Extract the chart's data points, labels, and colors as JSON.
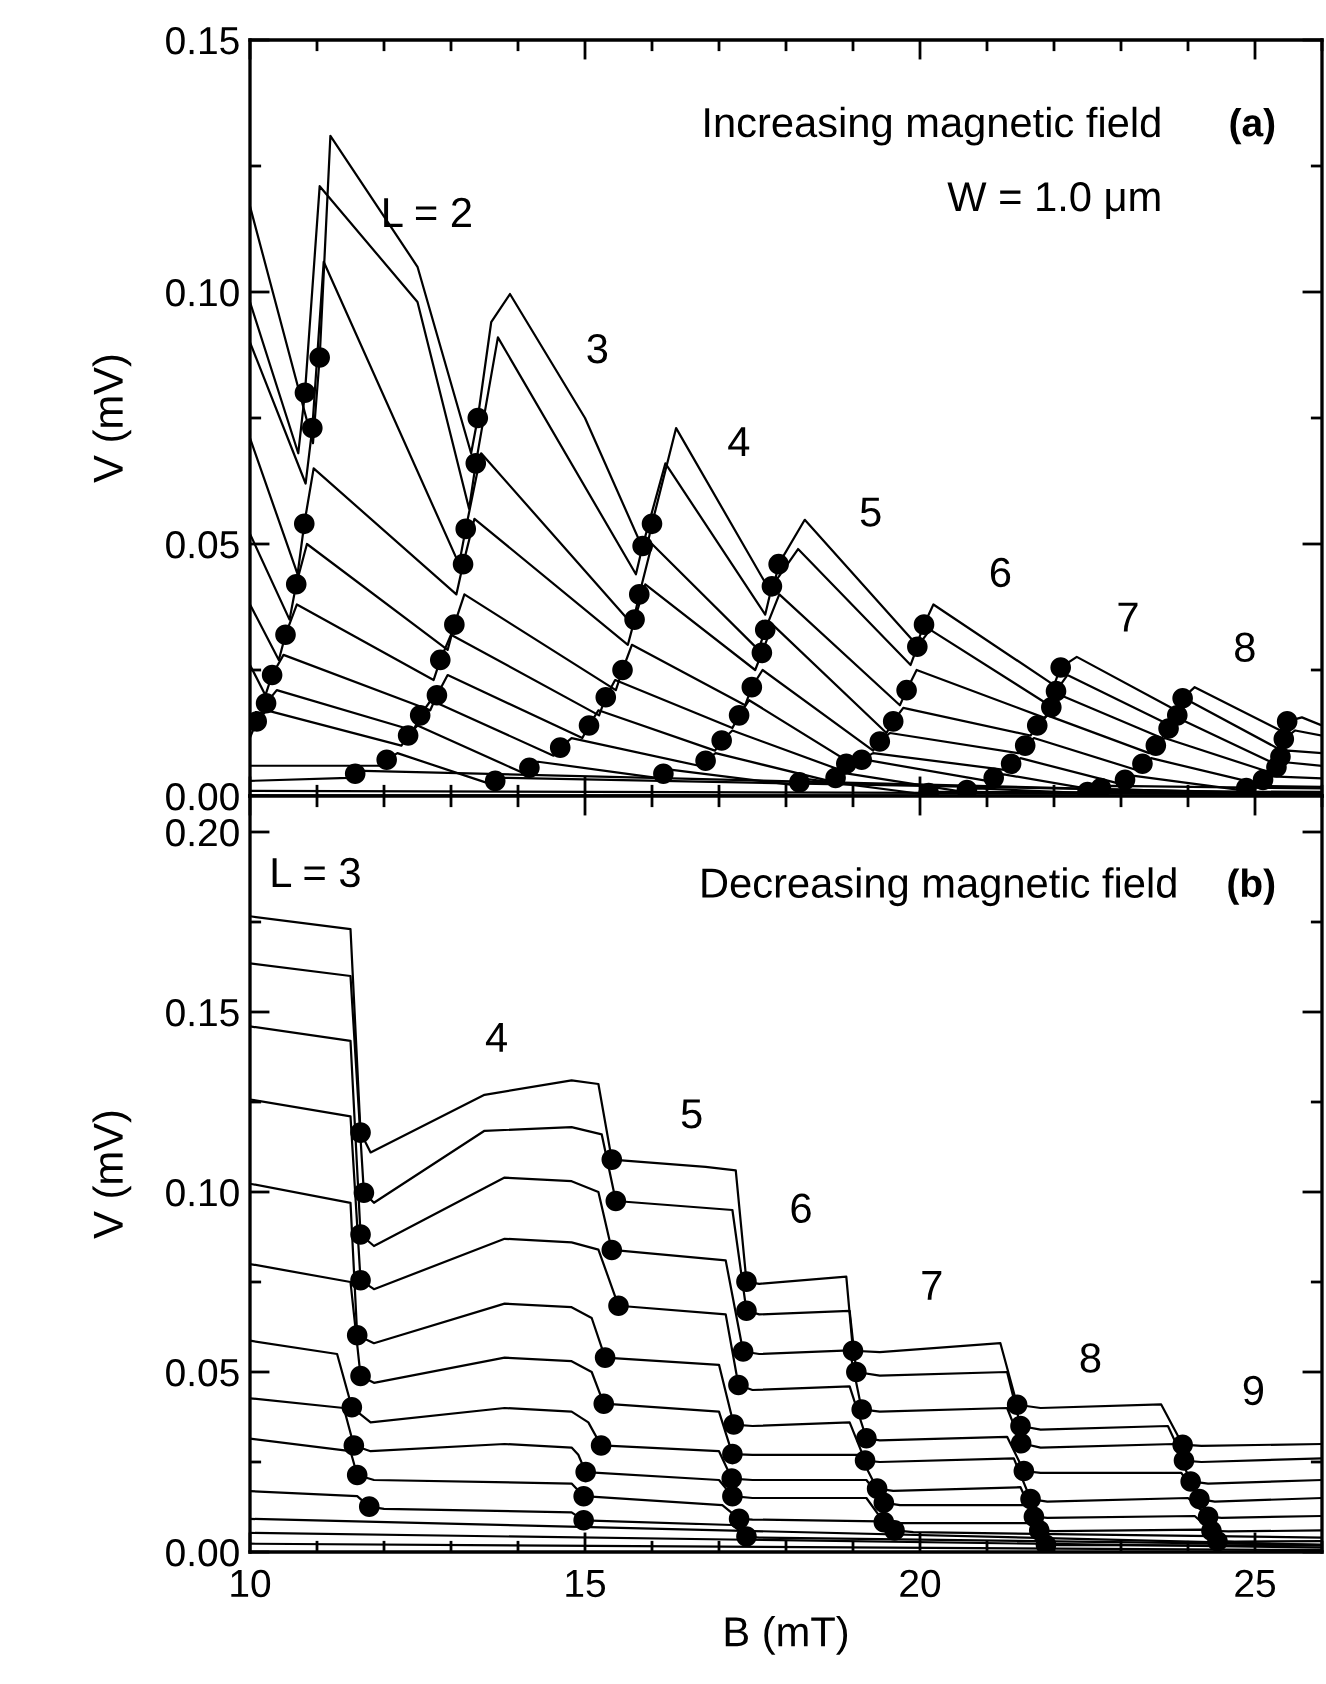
{
  "chart_data": [
    {
      "type": "line",
      "ylabel": "V (mV)",
      "tick_labels": "y",
      "xlim": [
        10,
        26
      ],
      "ylim": [
        0,
        0.15
      ],
      "xticks": [
        10,
        {
          "value": 11,
          "label": null
        },
        {
          "value": 12,
          "label": null
        },
        {
          "value": 13,
          "label": null
        },
        {
          "value": 14,
          "label": null
        },
        15,
        {
          "value": 16,
          "label": null
        },
        {
          "value": 17,
          "label": null
        },
        {
          "value": 18,
          "label": null
        },
        {
          "value": 19,
          "label": null
        },
        20,
        {
          "value": 21,
          "label": null
        },
        {
          "value": 22,
          "label": null
        },
        {
          "value": 23,
          "label": null
        },
        {
          "value": 24,
          "label": null
        },
        25,
        {
          "value": 26,
          "label": null
        }
      ],
      "yticks": [
        {
          "value": 0,
          "label": "0.00"
        },
        {
          "value": 0.025,
          "label": null
        },
        {
          "value": 0.05,
          "label": "0.05"
        },
        {
          "value": 0.075,
          "label": null
        },
        {
          "value": 0.1,
          "label": "0.10"
        },
        {
          "value": 0.125,
          "label": null
        },
        {
          "value": 0.15,
          "label": "0.15"
        }
      ],
      "annotations": [
        "Increasing magnetic field",
        "W = 1.0 μm",
        "(a)",
        "L = 2",
        "3",
        "4",
        "5",
        "6",
        "7",
        "8"
      ],
      "series": [
        {
          "type": "line",
          "color": "#000000",
          "x": [
            10,
            10.94,
            11.04,
            11.2,
            12.5,
            13.3,
            13.4,
            13.6,
            13.88,
            15.0,
            15.9,
            16.0,
            16.36,
            17.79,
            17.89,
            18.28,
            19.95,
            20.06,
            20.2,
            22.0,
            22.1,
            22.34,
            23.82,
            23.92,
            24.1,
            25.38,
            25.48,
            25.7,
            26
          ],
          "values": [
            0.117,
            0.07,
            0.087,
            0.131,
            0.105,
            0.068,
            0.075,
            0.094,
            0.0996,
            0.075,
            0.048,
            0.054,
            0.073,
            0.04,
            0.046,
            0.0548,
            0.03,
            0.034,
            0.038,
            0.022,
            0.0255,
            0.0276,
            0.017,
            0.0194,
            0.0216,
            0.013,
            0.0148,
            0.0156,
            0.014
          ]
        },
        {
          "type": "line",
          "color": "#000000",
          "x": [
            10,
            10.72,
            10.82,
            11.04,
            12.5,
            13.27,
            13.37,
            13.7,
            15.76,
            15.86,
            16.2,
            17.69,
            17.79,
            18.18,
            19.86,
            19.96,
            20.15,
            21.93,
            22.03,
            22.2,
            23.74,
            23.84,
            24.0,
            25.33,
            25.43,
            25.6,
            26
          ],
          "values": [
            0.098,
            0.068,
            0.08,
            0.121,
            0.098,
            0.057,
            0.066,
            0.091,
            0.044,
            0.0496,
            0.066,
            0.036,
            0.0416,
            0.049,
            0.026,
            0.0296,
            0.033,
            0.018,
            0.0208,
            0.024,
            0.014,
            0.016,
            0.019,
            0.0095,
            0.0113,
            0.013,
            0.012
          ]
        },
        {
          "type": "line",
          "color": "#000000",
          "x": [
            10,
            10.83,
            10.93,
            11.1,
            13.12,
            13.22,
            13.45,
            15.71,
            15.81,
            16.0,
            17.59,
            17.69,
            17.9,
            19.7,
            19.8,
            19.95,
            21.86,
            21.96,
            22.1,
            23.61,
            23.71,
            23.85,
            25.28,
            25.38,
            25.5,
            26
          ],
          "values": [
            0.09,
            0.062,
            0.073,
            0.106,
            0.046,
            0.053,
            0.068,
            0.034,
            0.04,
            0.05,
            0.029,
            0.033,
            0.04,
            0.018,
            0.021,
            0.025,
            0.0155,
            0.0176,
            0.02,
            0.0115,
            0.0134,
            0.0155,
            0.0065,
            0.0078,
            0.009,
            0.0085
          ]
        },
        {
          "type": "line",
          "color": "#000000",
          "x": [
            10,
            10.71,
            10.81,
            10.95,
            13.08,
            13.18,
            13.35,
            15.64,
            15.74,
            15.9,
            17.54,
            17.64,
            17.8,
            19.5,
            19.6,
            19.75,
            21.65,
            21.75,
            21.9,
            23.42,
            23.52,
            23.65,
            25.22,
            25.32,
            25.45,
            26
          ],
          "values": [
            0.071,
            0.044,
            0.054,
            0.065,
            0.04,
            0.046,
            0.055,
            0.03,
            0.035,
            0.042,
            0.025,
            0.0284,
            0.034,
            0.0125,
            0.0148,
            0.0175,
            0.012,
            0.014,
            0.016,
            0.0085,
            0.01,
            0.0115,
            0.0047,
            0.0057,
            0.0067,
            0.006
          ]
        },
        {
          "type": "line",
          "color": "#000000",
          "x": [
            10,
            10.59,
            10.69,
            10.85,
            12.95,
            13.05,
            13.2,
            15.46,
            15.56,
            15.7,
            17.39,
            17.49,
            17.65,
            19.3,
            19.4,
            19.55,
            21.47,
            21.57,
            21.7,
            23.22,
            23.32,
            23.45,
            25.02,
            25.12,
            25.25,
            26
          ],
          "values": [
            0.052,
            0.035,
            0.042,
            0.05,
            0.029,
            0.034,
            0.04,
            0.021,
            0.025,
            0.03,
            0.018,
            0.0216,
            0.025,
            0.009,
            0.0108,
            0.0125,
            0.0085,
            0.01,
            0.0115,
            0.0052,
            0.0064,
            0.0075,
            0.0025,
            0.0032,
            0.0039,
            0.0035
          ]
        },
        {
          "type": "line",
          "color": "#000000",
          "x": [
            10,
            10.43,
            10.53,
            10.7,
            12.74,
            12.84,
            13.0,
            15.21,
            15.31,
            15.45,
            17.2,
            17.3,
            17.45,
            19.03,
            19.13,
            19.3,
            21.26,
            21.36,
            21.5,
            22.96,
            23.06,
            23.2,
            24.77,
            24.87,
            25.0,
            26
          ],
          "values": [
            0.038,
            0.027,
            0.032,
            0.038,
            0.023,
            0.027,
            0.032,
            0.016,
            0.0196,
            0.023,
            0.0135,
            0.016,
            0.019,
            0.006,
            0.0072,
            0.0085,
            0.0052,
            0.0064,
            0.0075,
            0.0025,
            0.0032,
            0.004,
            0.0012,
            0.0016,
            0.002,
            0.0018
          ]
        },
        {
          "type": "line",
          "color": "#000000",
          "x": [
            10,
            10.23,
            10.33,
            10.5,
            12.69,
            12.79,
            12.95,
            14.96,
            15.06,
            15.2,
            16.94,
            17.04,
            17.2,
            18.8,
            18.9,
            19.05,
            21.0,
            21.1,
            21.25,
            22.6,
            22.7,
            22.85,
            26
          ],
          "values": [
            0.026,
            0.02,
            0.024,
            0.028,
            0.017,
            0.02,
            0.024,
            0.0115,
            0.014,
            0.017,
            0.009,
            0.011,
            0.013,
            0.0052,
            0.0064,
            0.0075,
            0.003,
            0.0036,
            0.0043,
            0.0012,
            0.0016,
            0.002,
            0.0015
          ]
        },
        {
          "type": "line",
          "color": "#000000",
          "x": [
            10,
            10.14,
            10.24,
            10.4,
            12.44,
            12.54,
            12.7,
            14.53,
            14.63,
            14.8,
            16.7,
            16.8,
            16.95,
            18.64,
            18.74,
            18.9,
            20.6,
            20.7,
            20.85,
            22.4,
            22.5,
            22.65,
            26
          ],
          "values": [
            0.0156,
            0.0155,
            0.0184,
            0.021,
            0.013,
            0.016,
            0.019,
            0.008,
            0.0096,
            0.0115,
            0.006,
            0.007,
            0.0085,
            0.003,
            0.0036,
            0.0045,
            0.0009,
            0.0012,
            0.0015,
            0.0006,
            0.0008,
            0.001,
            0.0008
          ]
        },
        {
          "type": "line",
          "color": "#000000",
          "x": [
            10,
            10.1,
            10.25,
            12.26,
            12.36,
            12.5,
            14.07,
            14.17,
            14.3,
            16.07,
            16.17,
            16.3,
            18.1,
            18.2,
            18.35,
            20.03,
            20.13,
            20.3,
            26
          ],
          "values": [
            0.0116,
            0.0148,
            0.017,
            0.01,
            0.012,
            0.014,
            0.0046,
            0.0056,
            0.0068,
            0.0036,
            0.0044,
            0.0052,
            0.0022,
            0.0027,
            0.0033,
            0.0004,
            0.0006,
            0.0008,
            0.0006
          ]
        },
        {
          "type": "line",
          "color": "#000000",
          "x": [
            10,
            11.94,
            12.04,
            12.2,
            13.56,
            13.66,
            13.8,
            26
          ],
          "values": [
            0.006,
            0.006,
            0.0072,
            0.0085,
            0.0025,
            0.003,
            0.0036,
            0.0005
          ]
        },
        {
          "type": "line",
          "color": "#000000",
          "x": [
            10,
            11.47,
            11.57,
            11.7,
            26
          ],
          "values": [
            0.003,
            0.0036,
            0.0044,
            0.005,
            0.0003
          ]
        },
        {
          "type": "line",
          "color": "#000000",
          "x": [
            10,
            26
          ],
          "values": [
            0.001,
            0.0004
          ]
        },
        {
          "type": "scatter",
          "color": "#000000",
          "marker": "circle",
          "x": [
            11.04,
            10.82,
            10.93,
            10.81,
            10.69,
            10.53,
            10.33,
            10.24,
            10.1,
            13.4,
            13.37,
            13.22,
            13.18,
            13.05,
            12.84,
            12.79,
            12.54,
            12.36,
            16.0,
            15.86,
            15.81,
            15.74,
            15.56,
            15.31,
            15.06,
            14.63,
            14.17,
            17.89,
            17.79,
            17.69,
            17.64,
            17.49,
            17.3,
            17.04,
            16.8,
            16.17,
            20.06,
            19.96,
            19.8,
            19.6,
            19.4,
            19.13,
            18.9,
            18.74,
            18.2,
            22.1,
            22.03,
            21.96,
            21.75,
            21.57,
            21.36,
            21.1,
            20.7,
            20.13,
            23.92,
            23.84,
            23.71,
            23.52,
            23.32,
            23.06,
            22.7,
            22.5,
            25.48,
            25.43,
            25.38,
            25.32,
            25.12,
            24.87,
            12.04,
            11.57,
            13.66
          ],
          "values": [
            0.087,
            0.08,
            0.073,
            0.054,
            0.042,
            0.032,
            0.024,
            0.0184,
            0.0148,
            0.075,
            0.066,
            0.053,
            0.046,
            0.034,
            0.027,
            0.02,
            0.016,
            0.012,
            0.054,
            0.0496,
            0.04,
            0.035,
            0.025,
            0.0196,
            0.014,
            0.0096,
            0.0056,
            0.046,
            0.0416,
            0.033,
            0.0284,
            0.0216,
            0.016,
            0.011,
            0.007,
            0.0044,
            0.034,
            0.0296,
            0.021,
            0.0148,
            0.0108,
            0.0072,
            0.0064,
            0.0036,
            0.0027,
            0.0255,
            0.0208,
            0.0176,
            0.014,
            0.01,
            0.0064,
            0.0036,
            0.0012,
            0.0006,
            0.0194,
            0.016,
            0.0134,
            0.01,
            0.0064,
            0.0032,
            0.0016,
            0.0008,
            0.0148,
            0.0113,
            0.0078,
            0.0057,
            0.0032,
            0.0016,
            0.0072,
            0.0044,
            0.003
          ]
        }
      ]
    },
    {
      "type": "line",
      "ylabel": "V (mV)",
      "xlabel": "B (mT)",
      "xlim": [
        10,
        26
      ],
      "ylim": [
        0,
        0.21
      ],
      "xticks": [
        10,
        {
          "value": 11,
          "label": null
        },
        {
          "value": 12,
          "label": null
        },
        {
          "value": 13,
          "label": null
        },
        {
          "value": 14,
          "label": null
        },
        15,
        {
          "value": 16,
          "label": null
        },
        {
          "value": 17,
          "label": null
        },
        {
          "value": 18,
          "label": null
        },
        {
          "value": 19,
          "label": null
        },
        20,
        {
          "value": 21,
          "label": null
        },
        {
          "value": 22,
          "label": null
        },
        {
          "value": 23,
          "label": null
        },
        {
          "value": 24,
          "label": null
        },
        25,
        {
          "value": 26,
          "label": null
        }
      ],
      "yticks": [
        {
          "value": 0,
          "label": "0.00"
        },
        {
          "value": 0.025,
          "label": null
        },
        {
          "value": 0.05,
          "label": "0.05"
        },
        {
          "value": 0.075,
          "label": null
        },
        {
          "value": 0.1,
          "label": "0.10"
        },
        {
          "value": 0.125,
          "label": null
        },
        {
          "value": 0.15,
          "label": "0.15"
        },
        {
          "value": 0.175,
          "label": null
        },
        {
          "value": 0.2,
          "label": "0.20"
        }
      ],
      "annotations": [
        "Decreasing magnetic field",
        "(b)",
        "L = 3",
        "4",
        "5",
        "6",
        "7",
        "8",
        "9"
      ],
      "series": [
        {
          "type": "line",
          "color": "#000000",
          "x": [
            10,
            11.5,
            11.65,
            11.8,
            13.5,
            14.8,
            15.2,
            15.4,
            16.8,
            17.25,
            17.41,
            17.6,
            18.9,
            19.0,
            19.4,
            21.2,
            21.45,
            21.8,
            23.6,
            23.92,
            24.2,
            26
          ],
          "values": [
            0.1766,
            0.173,
            0.1165,
            0.111,
            0.127,
            0.131,
            0.13,
            0.109,
            0.107,
            0.106,
            0.0751,
            0.0745,
            0.0765,
            0.0559,
            0.0555,
            0.058,
            0.0409,
            0.04,
            0.041,
            0.0298,
            0.0295,
            0.03
          ]
        },
        {
          "type": "line",
          "color": "#000000",
          "x": [
            10,
            11.5,
            11.7,
            11.85,
            13.5,
            14.8,
            15.25,
            15.46,
            17.2,
            17.41,
            17.6,
            18.95,
            19.05,
            19.4,
            21.3,
            21.5,
            21.8,
            23.7,
            23.94,
            24.2,
            26
          ],
          "values": [
            0.1635,
            0.16,
            0.0998,
            0.097,
            0.117,
            0.118,
            0.116,
            0.0975,
            0.095,
            0.067,
            0.066,
            0.067,
            0.05,
            0.049,
            0.05,
            0.035,
            0.034,
            0.035,
            0.0254,
            0.025,
            0.026
          ]
        },
        {
          "type": "line",
          "color": "#000000",
          "x": [
            10,
            11.5,
            11.65,
            11.85,
            13.8,
            14.8,
            15.2,
            15.4,
            17.1,
            17.36,
            17.6,
            18.95,
            19.13,
            19.4,
            21.3,
            21.51,
            21.8,
            23.8,
            24.04,
            24.3,
            26
          ],
          "values": [
            0.146,
            0.142,
            0.0882,
            0.085,
            0.104,
            0.103,
            0.1,
            0.0839,
            0.081,
            0.0557,
            0.055,
            0.056,
            0.0396,
            0.039,
            0.04,
            0.0302,
            0.029,
            0.03,
            0.0196,
            0.019,
            0.02
          ]
        },
        {
          "type": "line",
          "color": "#000000",
          "x": [
            10,
            11.5,
            11.65,
            11.85,
            13.8,
            14.8,
            15.2,
            15.5,
            17.1,
            17.29,
            17.5,
            18.95,
            19.2,
            19.4,
            21.3,
            21.55,
            21.8,
            23.9,
            24.17,
            24.4,
            26
          ],
          "values": [
            0.1257,
            0.121,
            0.0755,
            0.073,
            0.087,
            0.086,
            0.084,
            0.0684,
            0.066,
            0.0464,
            0.045,
            0.046,
            0.0316,
            0.031,
            0.032,
            0.0225,
            0.022,
            0.022,
            0.0147,
            0.014,
            0.015
          ]
        },
        {
          "type": "line",
          "color": "#000000",
          "x": [
            10,
            11.5,
            11.6,
            11.85,
            13.8,
            14.8,
            15.1,
            15.3,
            17.0,
            17.22,
            17.5,
            18.95,
            19.18,
            19.4,
            21.4,
            21.65,
            21.9,
            24.0,
            24.3,
            24.5,
            26
          ],
          "values": [
            0.1023,
            0.097,
            0.0602,
            0.058,
            0.069,
            0.068,
            0.065,
            0.054,
            0.052,
            0.0354,
            0.035,
            0.036,
            0.0254,
            0.025,
            0.026,
            0.0147,
            0.014,
            0.015,
            0.0098,
            0.0095,
            0.01
          ]
        },
        {
          "type": "line",
          "color": "#000000",
          "x": [
            10,
            11.5,
            11.65,
            11.85,
            13.8,
            14.8,
            15.1,
            15.28,
            17.0,
            17.2,
            17.5,
            19.1,
            19.36,
            19.6,
            21.5,
            21.7,
            21.9,
            24.1,
            24.35,
            24.6,
            26
          ],
          "values": [
            0.08,
            0.075,
            0.0489,
            0.047,
            0.054,
            0.053,
            0.05,
            0.0412,
            0.039,
            0.0272,
            0.027,
            0.027,
            0.0176,
            0.017,
            0.018,
            0.0098,
            0.0095,
            0.01,
            0.0059,
            0.0057,
            0.006
          ]
        },
        {
          "type": "line",
          "color": "#000000",
          "x": [
            10,
            11.3,
            11.52,
            11.8,
            13.8,
            14.8,
            15.05,
            15.24,
            17.0,
            17.19,
            17.5,
            19.2,
            19.46,
            19.7,
            21.6,
            21.78,
            22.0,
            24.2,
            24.44,
            24.7,
            26
          ],
          "values": [
            0.0587,
            0.055,
            0.0402,
            0.036,
            0.04,
            0.039,
            0.036,
            0.0296,
            0.028,
            0.0204,
            0.02,
            0.02,
            0.0137,
            0.013,
            0.013,
            0.006,
            0.0058,
            0.0062,
            0.003,
            0.0029,
            0.003
          ]
        },
        {
          "type": "line",
          "color": "#000000",
          "x": [
            10,
            11.4,
            11.55,
            11.8,
            13.8,
            14.8,
            14.9,
            15.01,
            17.0,
            17.2,
            17.5,
            19.2,
            19.46,
            19.7,
            21.7,
            21.88,
            22.1,
            26
          ],
          "values": [
            0.0427,
            0.04,
            0.0296,
            0.028,
            0.03,
            0.029,
            0.027,
            0.0222,
            0.02,
            0.0155,
            0.015,
            0.015,
            0.0083,
            0.008,
            0.008,
            0.002,
            0.0019,
            0.0018
          ]
        },
        {
          "type": "line",
          "color": "#000000",
          "x": [
            10,
            11.5,
            11.6,
            11.85,
            14.8,
            14.98,
            17.05,
            17.3,
            17.5,
            19.4,
            19.62,
            19.9,
            26
          ],
          "values": [
            0.0315,
            0.028,
            0.0214,
            0.02,
            0.019,
            0.0155,
            0.013,
            0.0092,
            0.009,
            0.0085,
            0.006,
            0.0055,
            0.004
          ]
        },
        {
          "type": "line",
          "color": "#000000",
          "x": [
            10,
            11.6,
            11.78,
            12.0,
            14.8,
            14.98,
            17.2,
            17.41,
            17.6,
            26
          ],
          "values": [
            0.0169,
            0.0155,
            0.0126,
            0.012,
            0.011,
            0.0088,
            0.0075,
            0.0043,
            0.004,
            0.002
          ]
        },
        {
          "type": "line",
          "color": "#000000",
          "x": [
            10,
            26
          ],
          "values": [
            0.0092,
            0.002
          ]
        },
        {
          "type": "line",
          "color": "#000000",
          "x": [
            10,
            26
          ],
          "values": [
            0.0053,
            0.0012
          ]
        },
        {
          "type": "line",
          "color": "#000000",
          "x": [
            10,
            26
          ],
          "values": [
            0.0023,
            0.0005
          ]
        },
        {
          "type": "scatter",
          "color": "#000000",
          "marker": "circle",
          "x": [
            11.65,
            11.7,
            11.65,
            11.65,
            11.6,
            11.65,
            11.52,
            11.55,
            11.6,
            11.78,
            15.4,
            15.46,
            15.4,
            15.5,
            15.3,
            15.28,
            15.24,
            15.01,
            14.98,
            14.98,
            17.41,
            17.41,
            17.36,
            17.29,
            17.22,
            17.2,
            17.19,
            17.2,
            17.3,
            17.41,
            19.0,
            19.05,
            19.13,
            19.2,
            19.18,
            19.36,
            19.46,
            19.46,
            19.62,
            21.45,
            21.5,
            21.51,
            21.55,
            21.65,
            21.7,
            21.78,
            21.88,
            23.92,
            23.94,
            24.04,
            24.17,
            24.3,
            24.35,
            24.44
          ],
          "values": [
            0.1165,
            0.0998,
            0.0882,
            0.0755,
            0.0602,
            0.0489,
            0.0402,
            0.0296,
            0.0214,
            0.0126,
            0.109,
            0.0975,
            0.0839,
            0.0684,
            0.054,
            0.0412,
            0.0296,
            0.0222,
            0.0155,
            0.0088,
            0.0751,
            0.067,
            0.0557,
            0.0464,
            0.0354,
            0.0272,
            0.0204,
            0.0155,
            0.0092,
            0.0043,
            0.0559,
            0.05,
            0.0396,
            0.0316,
            0.0254,
            0.0176,
            0.0137,
            0.0083,
            0.006,
            0.0409,
            0.035,
            0.0302,
            0.0225,
            0.0147,
            0.0098,
            0.006,
            0.002,
            0.0298,
            0.0254,
            0.0196,
            0.0147,
            0.0098,
            0.0059,
            0.003
          ]
        }
      ]
    }
  ]
}
